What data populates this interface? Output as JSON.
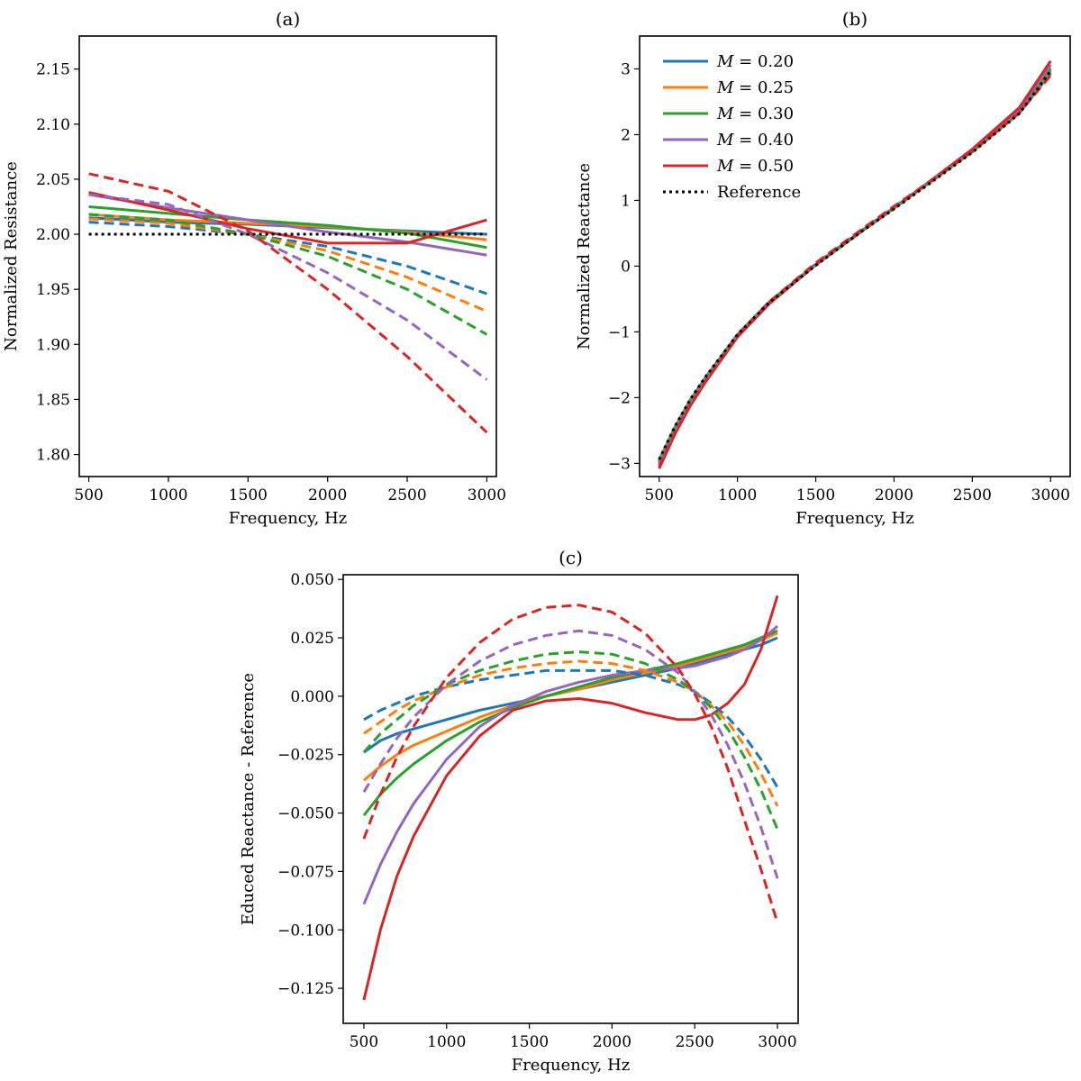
{
  "chart_data": [
    {
      "id": "a",
      "type": "line",
      "title": "(a)",
      "xlabel": "Frequency, Hz",
      "ylabel": "Normalized Resistance",
      "xlim": [
        440,
        3060
      ],
      "ylim": [
        1.78,
        2.18
      ],
      "xticks": [
        500,
        1000,
        1500,
        2000,
        2500,
        3000
      ],
      "yticks": [
        1.8,
        1.85,
        1.9,
        1.95,
        2.0,
        2.05,
        2.1,
        2.15
      ],
      "ytick_labels": [
        "1.80",
        "1.85",
        "1.90",
        "1.95",
        "2.00",
        "2.05",
        "2.10",
        "2.15"
      ],
      "legend": "none",
      "grid": false,
      "x": [
        500,
        1000,
        1500,
        2000,
        2500,
        3000
      ],
      "series": [
        {
          "color": "#1f77b4",
          "dash": "solid",
          "values": [
            2.015,
            2.011,
            2.009,
            2.006,
            2.003,
            2.0
          ]
        },
        {
          "color": "#ff7f0e",
          "dash": "solid",
          "values": [
            2.018,
            2.013,
            2.01,
            2.007,
            2.002,
            1.995
          ]
        },
        {
          "color": "#2ca02c",
          "dash": "solid",
          "values": [
            2.025,
            2.019,
            2.013,
            2.008,
            2.001,
            1.988
          ]
        },
        {
          "color": "#9467bd",
          "dash": "solid",
          "values": [
            2.036,
            2.024,
            2.013,
            2.002,
            1.993,
            1.981
          ]
        },
        {
          "color": "#d62728",
          "dash": "solid",
          "values": [
            2.038,
            2.022,
            2.005,
            1.992,
            1.992,
            2.013
          ]
        },
        {
          "color": "#1f77b4",
          "dash": "dashed",
          "values": [
            2.011,
            2.007,
            2.0,
            1.989,
            1.971,
            1.946
          ]
        },
        {
          "color": "#ff7f0e",
          "dash": "dashed",
          "values": [
            2.014,
            2.01,
            2.0,
            1.985,
            1.961,
            1.93
          ]
        },
        {
          "color": "#2ca02c",
          "dash": "dashed",
          "values": [
            2.018,
            2.013,
            2.0,
            1.98,
            1.95,
            1.909
          ]
        },
        {
          "color": "#9467bd",
          "dash": "dashed",
          "values": [
            2.036,
            2.027,
            2.0,
            1.965,
            1.922,
            1.868
          ]
        },
        {
          "color": "#d62728",
          "dash": "dashed",
          "values": [
            2.055,
            2.039,
            2.003,
            1.95,
            1.889,
            1.82
          ]
        },
        {
          "color": "#000000",
          "dash": "dotted",
          "values": [
            2.0,
            2.0,
            2.0,
            2.0,
            2.0,
            2.0
          ]
        }
      ]
    },
    {
      "id": "b",
      "type": "line",
      "title": "(b)",
      "xlabel": "Frequency, Hz",
      "ylabel": "Normalized Reactance",
      "xlim": [
        375,
        3125
      ],
      "ylim": [
        -3.2,
        3.5
      ],
      "xticks": [
        500,
        1000,
        1500,
        2000,
        2500,
        3000
      ],
      "yticks": [
        -3,
        -2,
        -1,
        0,
        1,
        2,
        3
      ],
      "ytick_labels": [
        "−3",
        "−2",
        "−1",
        "0",
        "1",
        "2",
        "3"
      ],
      "legend": "top-left",
      "grid": false,
      "x": [
        500,
        600,
        700,
        800,
        1000,
        1200,
        1500,
        1800,
        2000,
        2200,
        2500,
        2800,
        3000
      ],
      "series": [
        {
          "name": "M = 0.20",
          "legend_prefix": "M",
          "legend_value": " = 0.20",
          "color": "#1f77b4",
          "dash": "solid",
          "values": [
            -2.95,
            -2.45,
            -2.03,
            -1.68,
            -1.04,
            -0.56,
            0.02,
            0.54,
            0.88,
            1.22,
            1.74,
            2.33,
            2.97
          ]
        },
        {
          "name": "M = 0.25",
          "legend_prefix": "M",
          "legend_value": " = 0.25",
          "color": "#ff7f0e",
          "dash": "solid",
          "values": [
            -2.97,
            -2.46,
            -2.04,
            -1.69,
            -1.04,
            -0.56,
            0.02,
            0.54,
            0.88,
            1.22,
            1.74,
            2.34,
            2.99
          ]
        },
        {
          "name": "M = 0.30",
          "legend_prefix": "M",
          "legend_value": " = 0.30",
          "color": "#2ca02c",
          "dash": "solid",
          "values": [
            -2.99,
            -2.48,
            -2.05,
            -1.7,
            -1.05,
            -0.56,
            0.02,
            0.54,
            0.88,
            1.23,
            1.75,
            2.35,
            3.01
          ]
        },
        {
          "name": "M = 0.40",
          "legend_prefix": "M",
          "legend_value": " = 0.40",
          "color": "#9467bd",
          "dash": "solid",
          "values": [
            -3.03,
            -2.51,
            -2.08,
            -1.72,
            -1.06,
            -0.57,
            0.02,
            0.55,
            0.89,
            1.24,
            1.77,
            2.39,
            3.06
          ]
        },
        {
          "name": "M = 0.50",
          "legend_prefix": "M",
          "legend_value": " = 0.50",
          "color": "#d62728",
          "dash": "solid",
          "values": [
            -3.08,
            -2.56,
            -2.12,
            -1.75,
            -1.08,
            -0.58,
            0.02,
            0.55,
            0.89,
            1.24,
            1.78,
            2.41,
            3.12
          ]
        },
        {
          "color": "#1f77b4",
          "dash": "dashed",
          "values": [
            -2.96,
            -2.45,
            -2.03,
            -1.68,
            -1.04,
            -0.55,
            0.03,
            0.55,
            0.89,
            1.23,
            1.74,
            2.33,
            2.93
          ]
        },
        {
          "color": "#ff7f0e",
          "dash": "dashed",
          "values": [
            -2.97,
            -2.46,
            -2.04,
            -1.69,
            -1.04,
            -0.55,
            0.03,
            0.55,
            0.89,
            1.23,
            1.74,
            2.33,
            2.94
          ]
        },
        {
          "color": "#2ca02c",
          "dash": "dashed",
          "values": [
            -2.98,
            -2.47,
            -2.05,
            -1.69,
            -1.04,
            -0.55,
            0.03,
            0.55,
            0.89,
            1.23,
            1.74,
            2.33,
            2.93
          ]
        },
        {
          "color": "#9467bd",
          "dash": "dashed",
          "values": [
            -3.01,
            -2.5,
            -2.07,
            -1.71,
            -1.05,
            -0.55,
            0.04,
            0.56,
            0.9,
            1.24,
            1.75,
            2.34,
            2.93
          ]
        },
        {
          "color": "#d62728",
          "dash": "dashed",
          "values": [
            -3.05,
            -2.54,
            -2.1,
            -1.74,
            -1.06,
            -0.55,
            0.05,
            0.57,
            0.91,
            1.24,
            1.75,
            2.33,
            2.9
          ]
        },
        {
          "name": "Reference",
          "legend_prefix": "",
          "legend_value": "Reference",
          "color": "#000000",
          "dash": "dotted",
          "values": [
            -2.94,
            -2.44,
            -2.02,
            -1.67,
            -1.04,
            -0.56,
            0.01,
            0.54,
            0.87,
            1.21,
            1.73,
            2.32,
            2.97
          ]
        }
      ]
    },
    {
      "id": "c",
      "type": "line",
      "title": "(c)",
      "xlabel": "Frequency, Hz",
      "ylabel": "Educed Reactance - Reference",
      "xlim": [
        375,
        3125
      ],
      "ylim": [
        -0.14,
        0.052
      ],
      "xticks": [
        500,
        1000,
        1500,
        2000,
        2500,
        3000
      ],
      "yticks": [
        -0.125,
        -0.1,
        -0.075,
        -0.05,
        -0.025,
        0.0,
        0.025,
        0.05
      ],
      "ytick_labels": [
        "−0.125",
        "−0.100",
        "−0.075",
        "−0.050",
        "−0.025",
        "0.000",
        "0.025",
        "0.050"
      ],
      "legend": "none",
      "grid": false,
      "x": [
        500,
        600,
        700,
        800,
        1000,
        1200,
        1400,
        1600,
        1800,
        2000,
        2200,
        2400,
        2500,
        2600,
        2700,
        2800,
        2900,
        3000
      ],
      "series": [
        {
          "color": "#1f77b4",
          "dash": "solid",
          "values": [
            -0.024,
            -0.019,
            -0.016,
            -0.014,
            -0.01,
            -0.006,
            -0.003,
            0.0,
            0.003,
            0.006,
            0.009,
            0.012,
            0.014,
            0.016,
            0.018,
            0.02,
            0.022,
            0.025
          ]
        },
        {
          "color": "#ff7f0e",
          "dash": "solid",
          "values": [
            -0.036,
            -0.03,
            -0.025,
            -0.021,
            -0.015,
            -0.009,
            -0.004,
            0.0,
            0.003,
            0.007,
            0.01,
            0.013,
            0.015,
            0.017,
            0.019,
            0.021,
            0.024,
            0.027
          ]
        },
        {
          "color": "#2ca02c",
          "dash": "solid",
          "values": [
            -0.051,
            -0.042,
            -0.035,
            -0.029,
            -0.019,
            -0.011,
            -0.005,
            0.0,
            0.004,
            0.008,
            0.011,
            0.014,
            0.016,
            0.018,
            0.02,
            0.022,
            0.025,
            0.028
          ]
        },
        {
          "color": "#9467bd",
          "dash": "solid",
          "values": [
            -0.089,
            -0.072,
            -0.058,
            -0.046,
            -0.027,
            -0.013,
            -0.004,
            0.002,
            0.006,
            0.009,
            0.011,
            0.012,
            0.013,
            0.015,
            0.017,
            0.02,
            0.024,
            0.03
          ]
        },
        {
          "color": "#d62728",
          "dash": "solid",
          "values": [
            -0.13,
            -0.1,
            -0.077,
            -0.06,
            -0.034,
            -0.017,
            -0.006,
            -0.002,
            -0.001,
            -0.003,
            -0.007,
            -0.01,
            -0.01,
            -0.008,
            -0.003,
            0.005,
            0.02,
            0.043
          ]
        },
        {
          "color": "#1f77b4",
          "dash": "dashed",
          "values": [
            -0.01,
            -0.006,
            -0.003,
            0.0,
            0.004,
            0.007,
            0.009,
            0.011,
            0.011,
            0.011,
            0.009,
            0.005,
            0.002,
            -0.003,
            -0.009,
            -0.017,
            -0.027,
            -0.039
          ]
        },
        {
          "color": "#ff7f0e",
          "dash": "dashed",
          "values": [
            -0.016,
            -0.011,
            -0.006,
            -0.002,
            0.004,
            0.009,
            0.012,
            0.014,
            0.015,
            0.014,
            0.011,
            0.006,
            0.002,
            -0.004,
            -0.011,
            -0.021,
            -0.033,
            -0.047
          ]
        },
        {
          "color": "#2ca02c",
          "dash": "dashed",
          "values": [
            -0.024,
            -0.016,
            -0.01,
            -0.004,
            0.005,
            0.011,
            0.015,
            0.018,
            0.019,
            0.018,
            0.014,
            0.007,
            0.002,
            -0.005,
            -0.014,
            -0.026,
            -0.04,
            -0.057
          ]
        },
        {
          "color": "#9467bd",
          "dash": "dashed",
          "values": [
            -0.041,
            -0.029,
            -0.018,
            -0.009,
            0.005,
            0.015,
            0.022,
            0.026,
            0.028,
            0.026,
            0.02,
            0.01,
            0.002,
            -0.008,
            -0.021,
            -0.037,
            -0.056,
            -0.078
          ]
        },
        {
          "color": "#d62728",
          "dash": "dashed",
          "values": [
            -0.061,
            -0.042,
            -0.026,
            -0.013,
            0.008,
            0.023,
            0.033,
            0.038,
            0.039,
            0.036,
            0.027,
            0.012,
            0.001,
            -0.013,
            -0.031,
            -0.053,
            -0.074,
            -0.097
          ]
        }
      ]
    }
  ]
}
